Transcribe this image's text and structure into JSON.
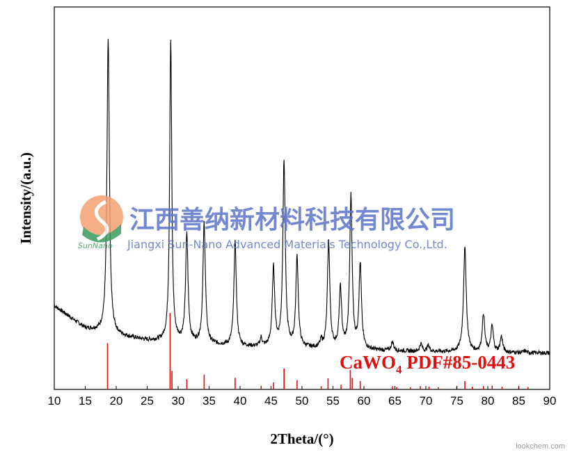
{
  "chart_data": {
    "type": "line",
    "xlabel": "2Theta/(°)",
    "ylabel": "Intensity/(a.u.)",
    "xlim": [
      10,
      90
    ],
    "ylim": [
      0,
      1000
    ],
    "xticks": [
      10,
      15,
      20,
      25,
      30,
      35,
      40,
      45,
      50,
      55,
      60,
      65,
      70,
      75,
      80,
      85,
      90
    ],
    "grid": false,
    "series": [
      {
        "kind": "xrd-pattern",
        "color": "#000000",
        "baseline": [
          [
            10,
            240
          ],
          [
            15,
            175
          ],
          [
            20,
            155
          ],
          [
            25,
            140
          ],
          [
            30,
            135
          ],
          [
            40,
            122
          ],
          [
            50,
            118
          ],
          [
            60,
            112
          ],
          [
            70,
            108
          ],
          [
            80,
            106
          ],
          [
            90,
            104
          ]
        ],
        "peaks": [
          {
            "x": 18.7,
            "y": 1000,
            "width": 0.35
          },
          {
            "x": 28.8,
            "y": 1000,
            "width": 0.3
          },
          {
            "x": 31.4,
            "y": 440,
            "width": 0.35
          },
          {
            "x": 34.2,
            "y": 475,
            "width": 0.35
          },
          {
            "x": 39.2,
            "y": 420,
            "width": 0.35
          },
          {
            "x": 43.4,
            "y": 145,
            "width": 0.3
          },
          {
            "x": 45.4,
            "y": 345,
            "width": 0.35
          },
          {
            "x": 47.1,
            "y": 650,
            "width": 0.35
          },
          {
            "x": 49.2,
            "y": 375,
            "width": 0.35
          },
          {
            "x": 53.1,
            "y": 135,
            "width": 0.3
          },
          {
            "x": 54.3,
            "y": 420,
            "width": 0.35
          },
          {
            "x": 56.2,
            "y": 285,
            "width": 0.35
          },
          {
            "x": 57.9,
            "y": 550,
            "width": 0.35
          },
          {
            "x": 59.4,
            "y": 355,
            "width": 0.35
          },
          {
            "x": 64.6,
            "y": 135,
            "width": 0.35
          },
          {
            "x": 69.2,
            "y": 130,
            "width": 0.35
          },
          {
            "x": 70.4,
            "y": 125,
            "width": 0.35
          },
          {
            "x": 76.3,
            "y": 405,
            "width": 0.4
          },
          {
            "x": 79.3,
            "y": 215,
            "width": 0.35
          },
          {
            "x": 80.7,
            "y": 180,
            "width": 0.35
          },
          {
            "x": 82.2,
            "y": 150,
            "width": 0.35
          },
          {
            "x": 86.0,
            "y": 110,
            "width": 0.35
          },
          {
            "x": 88.0,
            "y": 105,
            "width": 0.35
          }
        ]
      },
      {
        "kind": "reference-sticks",
        "name": "CaWO4 PDF#85-0443",
        "color": "#e01010",
        "sticks": [
          {
            "x": 18.6,
            "h": 100
          },
          {
            "x": 28.7,
            "h": 165
          },
          {
            "x": 29.0,
            "h": 40
          },
          {
            "x": 31.4,
            "h": 22
          },
          {
            "x": 34.2,
            "h": 32
          },
          {
            "x": 39.2,
            "h": 25
          },
          {
            "x": 43.4,
            "h": 8
          },
          {
            "x": 45.4,
            "h": 15
          },
          {
            "x": 47.1,
            "h": 45
          },
          {
            "x": 49.2,
            "h": 20
          },
          {
            "x": 53.1,
            "h": 7
          },
          {
            "x": 54.2,
            "h": 24
          },
          {
            "x": 56.3,
            "h": 10
          },
          {
            "x": 57.8,
            "h": 42
          },
          {
            "x": 58.1,
            "h": 25
          },
          {
            "x": 59.4,
            "h": 18
          },
          {
            "x": 64.6,
            "h": 7
          },
          {
            "x": 65.3,
            "h": 5
          },
          {
            "x": 67.5,
            "h": 5
          },
          {
            "x": 69.1,
            "h": 7
          },
          {
            "x": 70.5,
            "h": 6
          },
          {
            "x": 72.0,
            "h": 5
          },
          {
            "x": 75.0,
            "h": 6
          },
          {
            "x": 76.3,
            "h": 18
          },
          {
            "x": 77.5,
            "h": 6
          },
          {
            "x": 79.3,
            "h": 7
          },
          {
            "x": 80.7,
            "h": 8
          },
          {
            "x": 82.3,
            "h": 6
          },
          {
            "x": 85.0,
            "h": 5
          },
          {
            "x": 86.5,
            "h": 5
          }
        ]
      }
    ],
    "annotations": [
      {
        "text_main": "CaWO",
        "text_sub": "4",
        "text_rest": " PDF#85-0443",
        "color": "#e01010",
        "position": "bottom-right"
      }
    ]
  },
  "watermark": {
    "cn": "江西善纳新材料科技有限公司",
    "en": "Jiangxi Sun-Nano Advanced Materials Technology Co.,Ltd.",
    "logo_text": "SunNano",
    "color": "#5b74c9"
  },
  "credit": "lookchem.com"
}
